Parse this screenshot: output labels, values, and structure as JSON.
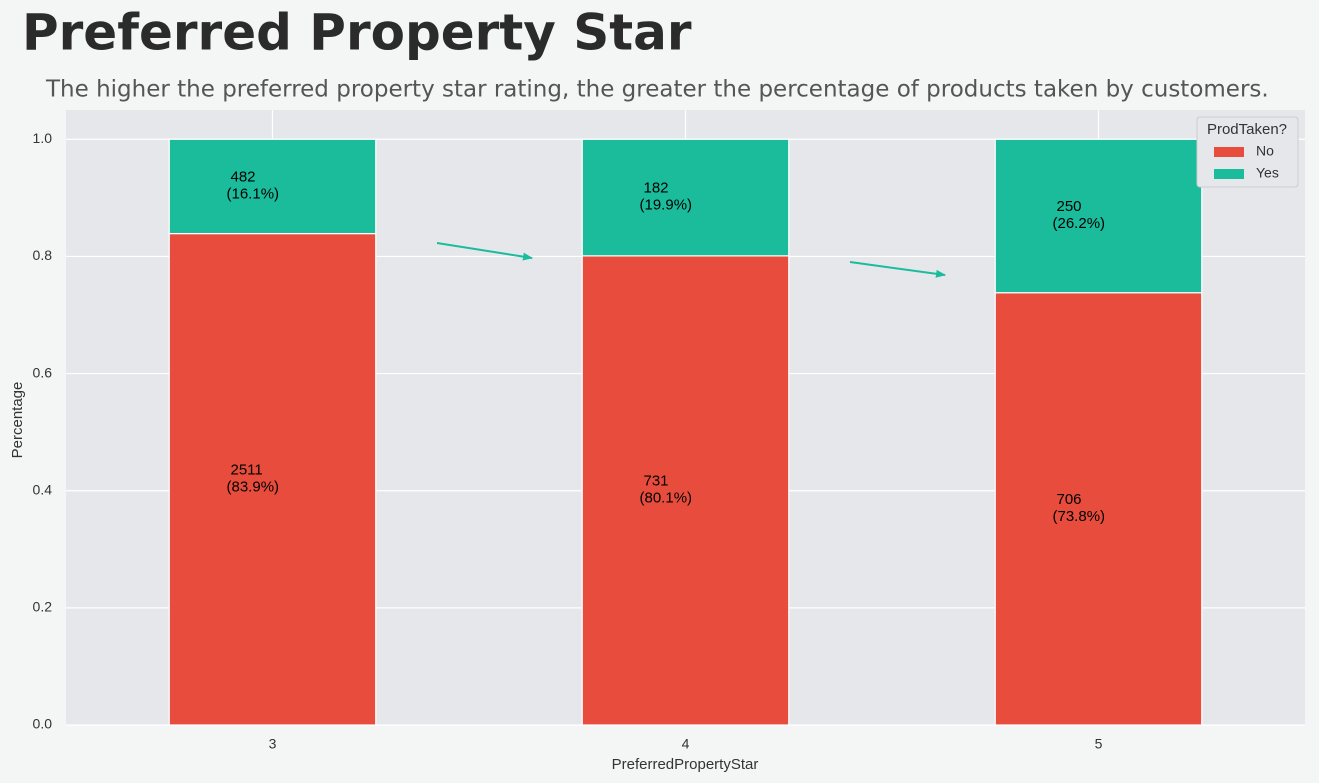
{
  "chart_data": {
    "type": "stacked_bar",
    "title": "Preferred Property Star",
    "subtitle": "The higher the preferred property star rating, the greater the percentage of products taken by customers.",
    "x_label": "PreferredPropertyStar",
    "y_label": "Percentage",
    "categories": [
      "3",
      "4",
      "5"
    ],
    "series": [
      {
        "name": "No",
        "color": "#e74c3c",
        "values": [
          0.839,
          0.801,
          0.738
        ],
        "counts": [
          2511,
          731,
          706
        ],
        "value_labels": [
          "(83.9%)",
          "(80.1%)",
          "(73.8%)"
        ]
      },
      {
        "name": "Yes",
        "color": "#1abc9c",
        "values": [
          0.161,
          0.199,
          0.262
        ],
        "counts": [
          482,
          182,
          250
        ],
        "value_labels": [
          "(16.1%)",
          "(19.9%)",
          "(26.2%)"
        ]
      }
    ],
    "ylim": [
      0,
      1.05
    ],
    "yticks": [
      {
        "value": 0,
        "label": "0.0"
      },
      0.2,
      0.4,
      0.6,
      0.8,
      {
        "value": 1,
        "label": "1.0"
      }
    ],
    "grid": true,
    "legend": {
      "title": "ProdTaken?",
      "position": "upper-right"
    }
  }
}
